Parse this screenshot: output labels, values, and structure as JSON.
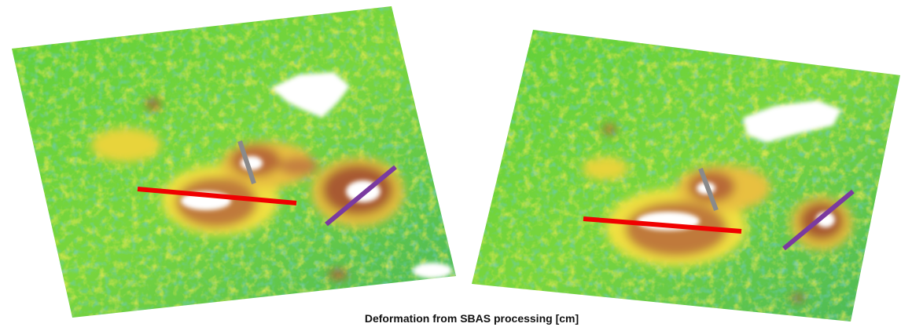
{
  "caption": "Deformation from SBAS processing [cm]"
}
